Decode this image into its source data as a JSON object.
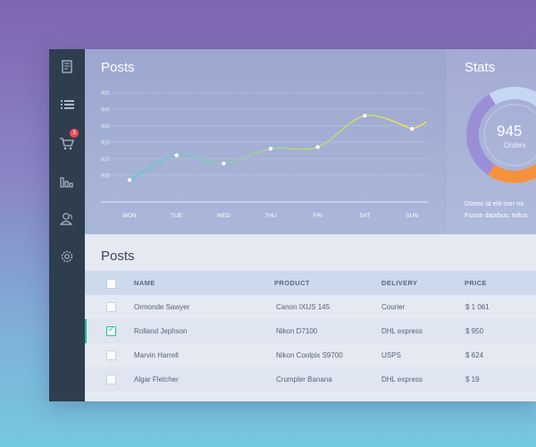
{
  "sidebar": {
    "items": [
      {
        "icon": "document-icon"
      },
      {
        "icon": "list-icon"
      },
      {
        "icon": "cart-icon",
        "badge": "3"
      },
      {
        "icon": "bar-chart-icon"
      },
      {
        "icon": "users-icon"
      },
      {
        "icon": "gear-icon"
      }
    ],
    "badge_color": "#ee4b55"
  },
  "posts_card": {
    "title": "Posts",
    "chart_data": {
      "type": "line",
      "categories": [
        "MON",
        "TUE",
        "WED",
        "THU",
        "FRI",
        "SAT",
        "SUN"
      ],
      "y_ticks": [
        "950",
        "940",
        "930",
        "920",
        "910",
        "900"
      ],
      "ylim": [
        895,
        952
      ],
      "series": [
        {
          "values": [
            897,
            912,
            907,
            916,
            917,
            936,
            928
          ],
          "color_start": "#57c9d6",
          "color_end": "#f2e04a"
        }
      ],
      "grid": true
    }
  },
  "stats_card": {
    "title": "Stats",
    "value": "945",
    "label": "Orders",
    "text_line1": "Donec id elit non mi ",
    "text_line2": "Fusce dapibus, tellus ",
    "donut_colors": [
      "#9a8fd6",
      "#f5923e",
      "#c7d6f3"
    ]
  },
  "table": {
    "title": "Posts",
    "headers": {
      "name": "NAME",
      "product": "PRODUCT",
      "delivery": "DELIVERY",
      "price": "PRICE"
    },
    "rows": [
      {
        "name": "Ormonde Sawyer",
        "product": "Canon IXUS 145",
        "delivery": "Courier",
        "price": "$ 1 061",
        "checked": false
      },
      {
        "name": "Rolland Jephson",
        "product": "Nikon D7100",
        "delivery": "DHL express",
        "price": "$ 950",
        "checked": true
      },
      {
        "name": "Marvin Harrell",
        "product": "Nikon Coolpix S9700",
        "delivery": "USPS",
        "price": "$ 624",
        "checked": false
      },
      {
        "name": "Algar Fletcher",
        "product": "Crumpler Banana",
        "delivery": "DHL express",
        "price": "$ 19",
        "checked": false
      }
    ],
    "accent": "#1ec293"
  }
}
